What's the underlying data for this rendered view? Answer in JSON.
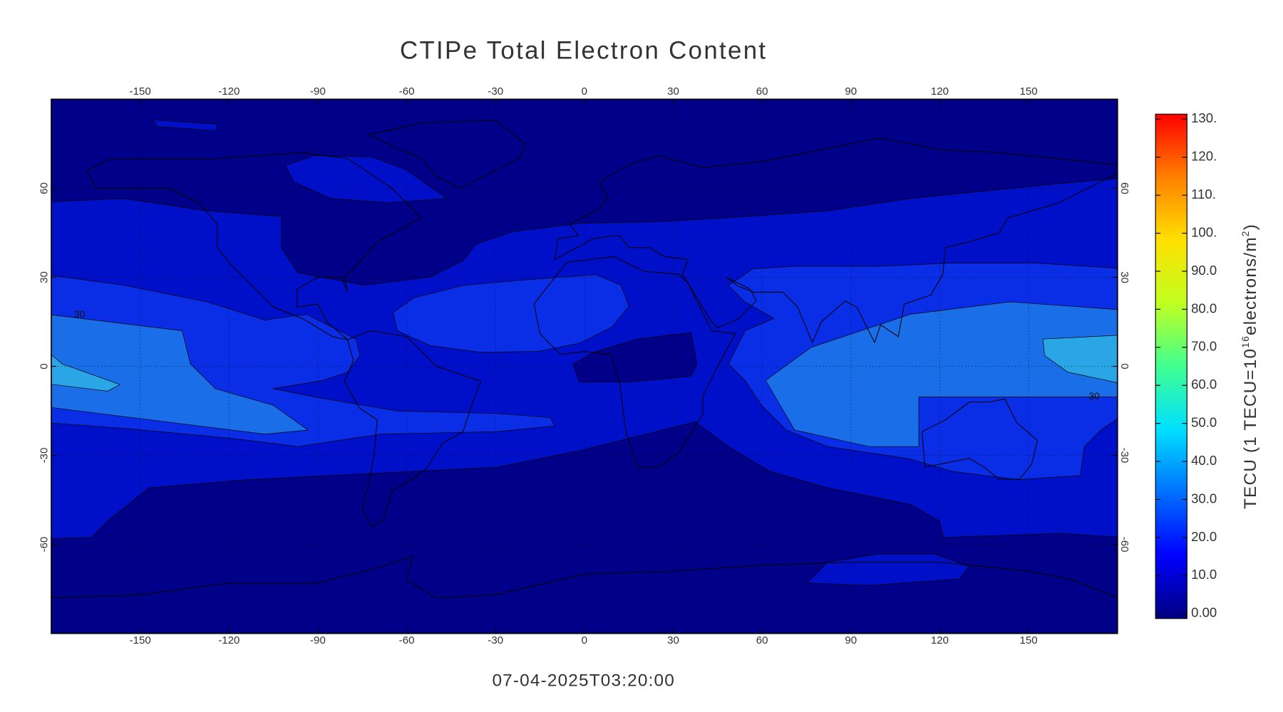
{
  "title": "CTIPe Total Electron Content",
  "timestamp": "07-04-2025T03:20:00",
  "map": {
    "xlim": [
      -180,
      180
    ],
    "ylim": [
      -90,
      90
    ],
    "xticks": [
      -150,
      -120,
      -90,
      -60,
      -30,
      0,
      30,
      60,
      90,
      120,
      150
    ],
    "yticks": [
      -60,
      -30,
      0,
      30,
      60
    ],
    "grid": true,
    "contour_levels": [
      0,
      10,
      20,
      30,
      40,
      50
    ],
    "contour_colors": [
      "#000088",
      "#0010c8",
      "#0a2ee6",
      "#1a6ee8",
      "#2aa6e6"
    ],
    "contour_labels": [
      30,
      30
    ]
  },
  "colorbar": {
    "lim": [
      0,
      130
    ],
    "ticks": [
      {
        "value": 0,
        "label": "0.00"
      },
      {
        "value": 10,
        "label": "10.0"
      },
      {
        "value": 20,
        "label": "20.0"
      },
      {
        "value": 30,
        "label": "30.0"
      },
      {
        "value": 40,
        "label": "40.0"
      },
      {
        "value": 50,
        "label": "50.0"
      },
      {
        "value": 60,
        "label": "60.0"
      },
      {
        "value": 70,
        "label": "70.0"
      },
      {
        "value": 80,
        "label": "80.0"
      },
      {
        "value": 90,
        "label": "90.0"
      },
      {
        "value": 100,
        "label": "100."
      },
      {
        "value": 110,
        "label": "110."
      },
      {
        "value": 120,
        "label": "120."
      },
      {
        "value": 130,
        "label": "130."
      }
    ],
    "colors": [
      "#000080",
      "#0000ff",
      "#0070ff",
      "#00e0ff",
      "#40ff90",
      "#c0ff20",
      "#ffe000",
      "#ff8000",
      "#ff0000"
    ],
    "label": [
      "TECU (1 TECU=10",
      "16",
      "electrons/m",
      "2",
      ")"
    ]
  }
}
